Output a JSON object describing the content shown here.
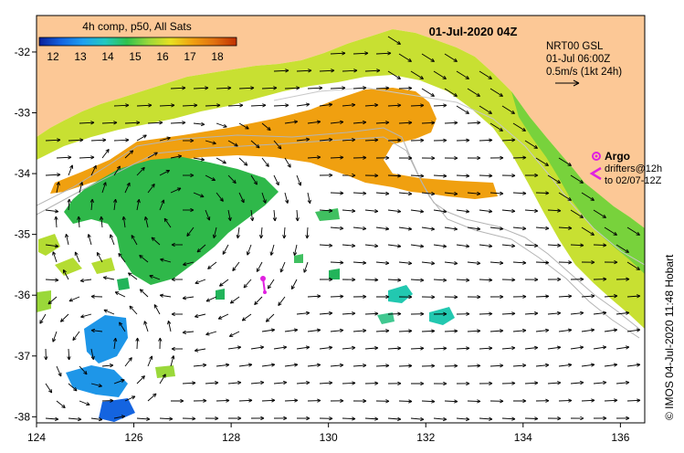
{
  "title": "01-Jul-2020 04Z",
  "colorbar": {
    "label": "4h comp, p50, All Sats",
    "ticks": [
      "12",
      "13",
      "14",
      "15",
      "16",
      "17",
      "18"
    ],
    "range": [
      11.5,
      18.7
    ],
    "colors": [
      "#0a1f9a",
      "#1464e0",
      "#1ea0f0",
      "#22c8c0",
      "#2fc24c",
      "#9ad83a",
      "#e8e020",
      "#f0a010",
      "#e07010",
      "#c03000"
    ]
  },
  "vectors_legend": {
    "line1": "NRT00 GSL",
    "line2": "01-Jul 06:00Z",
    "line3": "0.5m/s (1kt 24h)"
  },
  "argo_legend": {
    "title": "Argo",
    "line1": "drifters@12h",
    "line2": "to 02/07-12Z",
    "argo_color": "#e020e0"
  },
  "credit": "© IMOS 04-Jul-2020 11:48 Hobart",
  "x_axis": {
    "ticks": [
      "124",
      "126",
      "128",
      "130",
      "132",
      "134",
      "136"
    ],
    "values": [
      124,
      126,
      128,
      130,
      132,
      134,
      136
    ]
  },
  "y_axis": {
    "ticks": [
      "-32",
      "-33",
      "-34",
      "-35",
      "-36",
      "-37",
      "-38"
    ],
    "values": [
      -32,
      -33,
      -34,
      -35,
      -36,
      -37,
      -38
    ]
  },
  "colors": {
    "land": "#fcc896",
    "ocean_nodata": "#ffffff",
    "contour": "#b4b4b4",
    "argo": "#e020e0"
  }
}
